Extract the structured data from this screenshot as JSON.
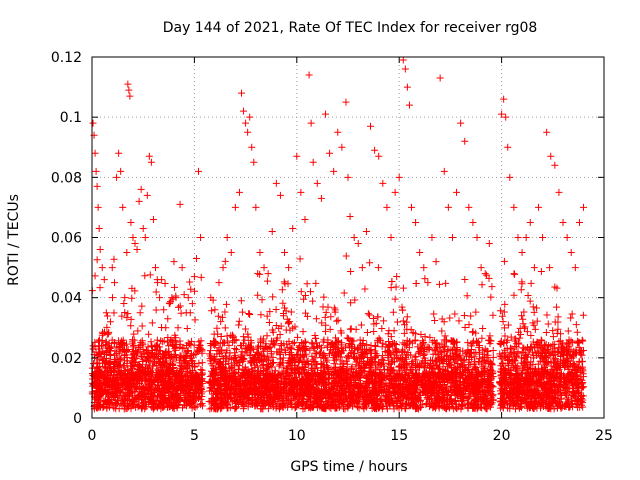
{
  "chart_data": {
    "type": "scatter",
    "title": "Day 144 of 2021, Rate Of TEC Index for receiver rg08",
    "xlabel": "GPS time / hours",
    "ylabel": "ROTI / TECUs",
    "xlim": [
      0,
      25
    ],
    "ylim": [
      0,
      0.12
    ],
    "xticks": [
      0,
      5,
      10,
      15,
      20,
      25
    ],
    "yticks": [
      0,
      0.02,
      0.04,
      0.06,
      0.08,
      0.1,
      0.12
    ],
    "xtick_labels": [
      "0",
      "5",
      "10",
      "15",
      "20",
      "25"
    ],
    "ytick_labels": [
      "0",
      "0.02",
      "0.04",
      "0.06",
      "0.08",
      "0.1",
      "0.12"
    ],
    "grid": true,
    "marker": "+",
    "series_color": "#ff0000",
    "data_coverage": [
      [
        0,
        5.4
      ],
      [
        5.7,
        19.6
      ],
      [
        19.9,
        24.0
      ]
    ],
    "series": [
      {
        "name": "ROTI",
        "points": [
          [
            0.05,
            0.098
          ],
          [
            0.1,
            0.094
          ],
          [
            0.15,
            0.088
          ],
          [
            0.2,
            0.082
          ],
          [
            0.25,
            0.077
          ],
          [
            0.3,
            0.07
          ],
          [
            0.35,
            0.063
          ],
          [
            0.4,
            0.056
          ],
          [
            0.5,
            0.05
          ],
          [
            0.6,
            0.046
          ],
          [
            0.7,
            0.035
          ],
          [
            0.8,
            0.028
          ],
          [
            0.9,
            0.032
          ],
          [
            1.0,
            0.04
          ],
          [
            1.1,
            0.045
          ],
          [
            1.2,
            0.08
          ],
          [
            1.3,
            0.088
          ],
          [
            1.4,
            0.082
          ],
          [
            1.5,
            0.07
          ],
          [
            1.6,
            0.04
          ],
          [
            1.7,
            0.055
          ],
          [
            1.75,
            0.111
          ],
          [
            1.8,
            0.109
          ],
          [
            1.85,
            0.107
          ],
          [
            1.9,
            0.065
          ],
          [
            2.0,
            0.06
          ],
          [
            2.1,
            0.058
          ],
          [
            2.2,
            0.056
          ],
          [
            2.3,
            0.072
          ],
          [
            2.4,
            0.076
          ],
          [
            2.5,
            0.063
          ],
          [
            2.6,
            0.06
          ],
          [
            2.7,
            0.074
          ],
          [
            2.8,
            0.087
          ],
          [
            2.9,
            0.085
          ],
          [
            3.0,
            0.066
          ],
          [
            3.1,
            0.05
          ],
          [
            3.2,
            0.045
          ],
          [
            3.3,
            0.04
          ],
          [
            3.4,
            0.046
          ],
          [
            3.5,
            0.036
          ],
          [
            3.6,
            0.03
          ],
          [
            3.7,
            0.033
          ],
          [
            3.8,
            0.038
          ],
          [
            3.9,
            0.04
          ],
          [
            4.0,
            0.052
          ],
          [
            4.1,
            0.04
          ],
          [
            4.2,
            0.03
          ],
          [
            4.3,
            0.071
          ],
          [
            4.4,
            0.05
          ],
          [
            4.5,
            0.041
          ],
          [
            4.6,
            0.035
          ],
          [
            4.7,
            0.04
          ],
          [
            4.8,
            0.035
          ],
          [
            4.9,
            0.038
          ],
          [
            5.0,
            0.047
          ],
          [
            5.1,
            0.053
          ],
          [
            5.2,
            0.082
          ],
          [
            5.3,
            0.06
          ],
          [
            5.8,
            0.04
          ],
          [
            6.0,
            0.036
          ],
          [
            6.2,
            0.045
          ],
          [
            6.4,
            0.05
          ],
          [
            6.6,
            0.06
          ],
          [
            6.8,
            0.055
          ],
          [
            7.0,
            0.07
          ],
          [
            7.2,
            0.075
          ],
          [
            7.3,
            0.108
          ],
          [
            7.4,
            0.102
          ],
          [
            7.5,
            0.098
          ],
          [
            7.6,
            0.095
          ],
          [
            7.7,
            0.1
          ],
          [
            7.8,
            0.09
          ],
          [
            7.9,
            0.085
          ],
          [
            8.0,
            0.07
          ],
          [
            8.2,
            0.055
          ],
          [
            8.4,
            0.05
          ],
          [
            8.6,
            0.048
          ],
          [
            8.8,
            0.062
          ],
          [
            9.0,
            0.078
          ],
          [
            9.2,
            0.074
          ],
          [
            9.4,
            0.055
          ],
          [
            9.6,
            0.05
          ],
          [
            9.8,
            0.063
          ],
          [
            10.0,
            0.087
          ],
          [
            10.2,
            0.075
          ],
          [
            10.4,
            0.066
          ],
          [
            10.6,
            0.114
          ],
          [
            10.7,
            0.098
          ],
          [
            10.8,
            0.085
          ],
          [
            11.0,
            0.078
          ],
          [
            11.2,
            0.073
          ],
          [
            11.4,
            0.101
          ],
          [
            11.6,
            0.088
          ],
          [
            11.8,
            0.082
          ],
          [
            12.0,
            0.095
          ],
          [
            12.2,
            0.09
          ],
          [
            12.4,
            0.105
          ],
          [
            12.5,
            0.08
          ],
          [
            12.6,
            0.067
          ],
          [
            12.8,
            0.06
          ],
          [
            13.0,
            0.058
          ],
          [
            13.2,
            0.05
          ],
          [
            13.4,
            0.062
          ],
          [
            13.6,
            0.097
          ],
          [
            13.8,
            0.089
          ],
          [
            14.0,
            0.087
          ],
          [
            14.2,
            0.078
          ],
          [
            14.4,
            0.07
          ],
          [
            14.6,
            0.06
          ],
          [
            14.8,
            0.075
          ],
          [
            15.0,
            0.08
          ],
          [
            15.2,
            0.119
          ],
          [
            15.3,
            0.116
          ],
          [
            15.4,
            0.11
          ],
          [
            15.5,
            0.104
          ],
          [
            15.6,
            0.07
          ],
          [
            15.8,
            0.065
          ],
          [
            16.0,
            0.055
          ],
          [
            16.2,
            0.05
          ],
          [
            16.4,
            0.045
          ],
          [
            16.6,
            0.06
          ],
          [
            16.8,
            0.052
          ],
          [
            17.0,
            0.113
          ],
          [
            17.2,
            0.082
          ],
          [
            17.4,
            0.07
          ],
          [
            17.6,
            0.06
          ],
          [
            17.8,
            0.075
          ],
          [
            18.0,
            0.098
          ],
          [
            18.2,
            0.092
          ],
          [
            18.4,
            0.07
          ],
          [
            18.6,
            0.065
          ],
          [
            18.8,
            0.06
          ],
          [
            19.0,
            0.05
          ],
          [
            19.2,
            0.048
          ],
          [
            19.4,
            0.058
          ],
          [
            20.0,
            0.101
          ],
          [
            20.1,
            0.106
          ],
          [
            20.2,
            0.1
          ],
          [
            20.3,
            0.09
          ],
          [
            20.4,
            0.08
          ],
          [
            20.6,
            0.07
          ],
          [
            20.8,
            0.06
          ],
          [
            21.0,
            0.055
          ],
          [
            21.2,
            0.06
          ],
          [
            21.4,
            0.065
          ],
          [
            21.6,
            0.05
          ],
          [
            21.8,
            0.07
          ],
          [
            22.0,
            0.06
          ],
          [
            22.2,
            0.095
          ],
          [
            22.4,
            0.087
          ],
          [
            22.6,
            0.084
          ],
          [
            22.8,
            0.075
          ],
          [
            23.0,
            0.065
          ],
          [
            23.2,
            0.06
          ],
          [
            23.4,
            0.055
          ],
          [
            23.6,
            0.05
          ],
          [
            23.8,
            0.065
          ],
          [
            24.0,
            0.07
          ]
        ]
      }
    ]
  }
}
